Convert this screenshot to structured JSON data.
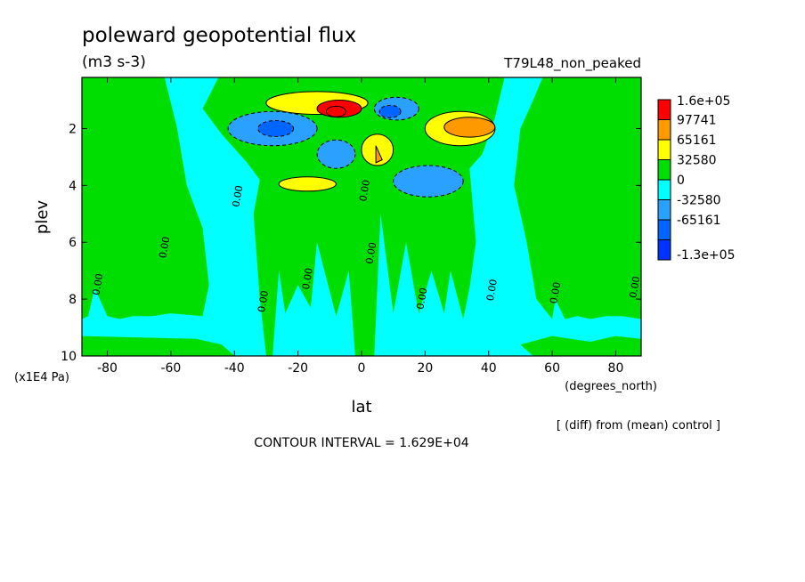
{
  "chart_data": {
    "type": "heatmap",
    "title": "poleward geopotential flux",
    "units": "(m3 s-3)",
    "run_label": "T79L48_non_peaked",
    "xlabel": "lat",
    "x_units": "(degrees_north)",
    "ylabel": "plev",
    "y_units": "(x1E4 Pa)",
    "xlim": [
      -88,
      88
    ],
    "ylim": [
      10,
      0.2
    ],
    "x_ticks": [
      -80,
      -60,
      -40,
      -20,
      0,
      20,
      40,
      60,
      80
    ],
    "x_tick_labels": [
      "-80",
      "-60",
      "-40",
      "-20",
      "0",
      "20",
      "40",
      "60",
      "80"
    ],
    "y_ticks": [
      2,
      4,
      6,
      8,
      10
    ],
    "y_tick_labels": [
      "2",
      "4",
      "6",
      "8",
      "10"
    ],
    "contour_interval_text": "CONTOUR INTERVAL = 1.629E+04",
    "diff_text": "[ (diff) from (mean) control ]",
    "contour_labels": [
      "0.00",
      "0.00",
      "0.00",
      "0.00",
      "0.00",
      "0.00",
      "0.00",
      "0.00",
      "0.00",
      "0.00",
      "0.00"
    ],
    "legend": {
      "position": "right",
      "labels": [
        "1.6e+05",
        "97741",
        "65161",
        "32580",
        "0",
        "-32580",
        "-65161",
        "-1.3e+05"
      ],
      "colors": [
        "#ff0000",
        "#ff9900",
        "#ffff00",
        "#00dd00",
        "#00ffff",
        "#2aa0ff",
        "#0066ff",
        "#0033ff"
      ]
    },
    "colors": {
      "positive_high": "#ff0000",
      "positive_mid": "#ff9900",
      "positive_low": "#ffff00",
      "near_zero_positive": "#00dd00",
      "near_zero_negative": "#00ffff",
      "negative_low": "#2aa0ff",
      "negative_mid": "#0066ff"
    },
    "features": [
      {
        "level": 3,
        "lat": [
          -30,
          2
        ],
        "plev": [
          0.7,
          1.5
        ]
      },
      {
        "level": 4,
        "lat": [
          -14,
          0
        ],
        "plev": [
          1.0,
          1.6
        ]
      },
      {
        "level": 3,
        "lat": [
          20,
          42
        ],
        "plev": [
          1.4,
          2.6
        ]
      },
      {
        "level": 2,
        "lat": [
          26,
          42
        ],
        "plev": [
          1.6,
          2.3
        ]
      },
      {
        "level": 3,
        "lat": [
          0,
          10
        ],
        "plev": [
          2.2,
          3.3
        ]
      },
      {
        "level": 3,
        "lat": [
          -26,
          -8
        ],
        "plev": [
          3.7,
          4.2
        ]
      },
      {
        "level": 5,
        "lat": [
          -42,
          -14
        ],
        "plev": [
          1.4,
          2.6
        ]
      },
      {
        "level": 5,
        "lat": [
          -14,
          -2
        ],
        "plev": [
          2.4,
          3.4
        ]
      },
      {
        "level": 5,
        "lat": [
          4,
          18
        ],
        "plev": [
          0.9,
          1.7
        ]
      },
      {
        "level": 5,
        "lat": [
          10,
          32
        ],
        "plev": [
          3.3,
          4.4
        ]
      }
    ]
  }
}
